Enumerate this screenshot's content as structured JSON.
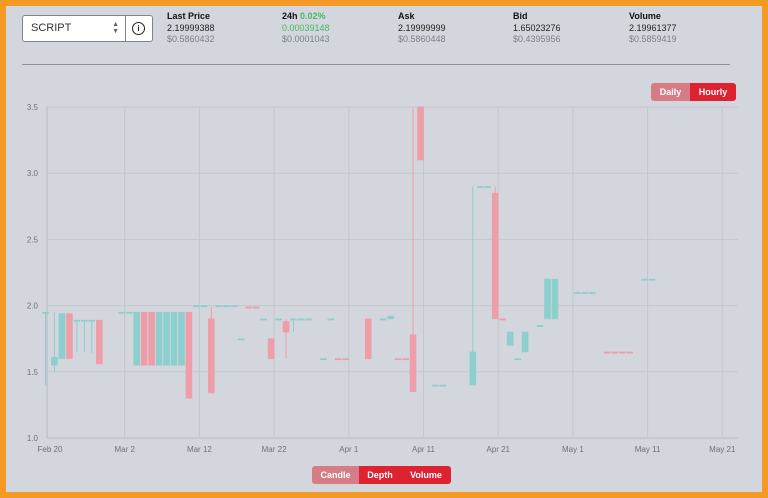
{
  "market_select": {
    "value": "SCRIPT"
  },
  "stats": [
    {
      "label": "Last Price",
      "value": "2.19999388",
      "sub": "$0.5860432"
    },
    {
      "label": "24h",
      "change": "0.02%",
      "value": "0.00039148",
      "sub": "$0.0001043"
    },
    {
      "label": "Ask",
      "value": "2.19999999",
      "sub": "$0.5860448"
    },
    {
      "label": "Bid",
      "value": "1.65023276",
      "sub": "$0.4395956"
    },
    {
      "label": "Volume",
      "value": "2.19961377",
      "sub": "$0.5859419"
    }
  ],
  "interval_toggle": {
    "options": [
      "Daily",
      "Hourly"
    ],
    "active": "Hourly"
  },
  "view_toggle": {
    "options": [
      "Candle",
      "Depth",
      "Volume"
    ],
    "active": "Depth"
  },
  "colors": {
    "up": "#8dcfce",
    "down": "#ed9ea9",
    "background": "#d3d6dc",
    "accent": "#dd2231"
  },
  "chart_data": {
    "type": "candlestick",
    "x_ticks": [
      "Feb 20",
      "Mar 2",
      "Mar 12",
      "Mar 22",
      "Apr 1",
      "Apr 11",
      "Apr 21",
      "May 1",
      "May 11",
      "May 21"
    ],
    "y_ticks": [
      "1.0",
      "1.5",
      "2.0",
      "2.5",
      "3.0",
      "3.5"
    ],
    "ylim": [
      1.0,
      3.5
    ],
    "x_start": "2020-02-20",
    "x_step_days": 10,
    "candles": [
      {
        "x": -0.6,
        "o": 1.95,
        "c": 1.95,
        "h": 1.95,
        "l": 1.4,
        "dir": "up"
      },
      {
        "x": 0.6,
        "o": 1.55,
        "c": 1.61,
        "h": 1.95,
        "l": 1.5,
        "dir": "up"
      },
      {
        "x": 1.6,
        "o": 1.6,
        "c": 1.94,
        "h": 1.94,
        "l": 1.6,
        "dir": "up"
      },
      {
        "x": 2.6,
        "o": 1.94,
        "c": 1.6,
        "h": 1.94,
        "l": 1.6,
        "dir": "down"
      },
      {
        "x": 3.6,
        "o": 1.89,
        "c": 1.89,
        "h": 1.89,
        "l": 1.65,
        "dir": "up"
      },
      {
        "x": 4.6,
        "o": 1.89,
        "c": 1.89,
        "h": 1.89,
        "l": 1.65,
        "dir": "up"
      },
      {
        "x": 5.6,
        "o": 1.89,
        "c": 1.89,
        "h": 1.89,
        "l": 1.64,
        "dir": "up"
      },
      {
        "x": 6.6,
        "o": 1.89,
        "c": 1.56,
        "h": 1.89,
        "l": 1.56,
        "dir": "down"
      },
      {
        "x": 9.6,
        "o": 1.95,
        "c": 1.95,
        "h": 1.95,
        "l": 1.95,
        "dir": "up"
      },
      {
        "x": 10.6,
        "o": 1.95,
        "c": 1.95,
        "h": 1.95,
        "l": 1.95,
        "dir": "up"
      },
      {
        "x": 11.6,
        "o": 1.55,
        "c": 1.95,
        "h": 1.95,
        "l": 1.55,
        "dir": "up"
      },
      {
        "x": 12.6,
        "o": 1.95,
        "c": 1.55,
        "h": 1.95,
        "l": 1.55,
        "dir": "down"
      },
      {
        "x": 13.6,
        "o": 1.95,
        "c": 1.55,
        "h": 1.95,
        "l": 1.55,
        "dir": "down"
      },
      {
        "x": 14.6,
        "o": 1.55,
        "c": 1.95,
        "h": 1.95,
        "l": 1.55,
        "dir": "up"
      },
      {
        "x": 15.6,
        "o": 1.55,
        "c": 1.95,
        "h": 1.95,
        "l": 1.55,
        "dir": "up"
      },
      {
        "x": 16.6,
        "o": 1.55,
        "c": 1.95,
        "h": 1.95,
        "l": 1.55,
        "dir": "up"
      },
      {
        "x": 17.6,
        "o": 1.55,
        "c": 1.95,
        "h": 1.95,
        "l": 1.55,
        "dir": "up"
      },
      {
        "x": 18.6,
        "o": 1.95,
        "c": 1.3,
        "h": 1.95,
        "l": 1.3,
        "dir": "down"
      },
      {
        "x": 19.6,
        "o": 2.0,
        "c": 2.0,
        "h": 2.0,
        "l": 2.0,
        "dir": "up"
      },
      {
        "x": 20.6,
        "o": 2.0,
        "c": 2.0,
        "h": 2.0,
        "l": 2.0,
        "dir": "up"
      },
      {
        "x": 21.6,
        "o": 1.9,
        "c": 1.34,
        "h": 1.99,
        "l": 1.34,
        "dir": "down"
      },
      {
        "x": 22.6,
        "o": 2.0,
        "c": 2.0,
        "h": 2.0,
        "l": 2.0,
        "dir": "up"
      },
      {
        "x": 23.6,
        "o": 2.0,
        "c": 2.0,
        "h": 2.0,
        "l": 2.0,
        "dir": "up"
      },
      {
        "x": 24.6,
        "o": 2.0,
        "c": 2.0,
        "h": 2.0,
        "l": 2.0,
        "dir": "up"
      },
      {
        "x": 25.6,
        "o": 1.75,
        "c": 1.75,
        "h": 1.75,
        "l": 1.75,
        "dir": "up"
      },
      {
        "x": 26.6,
        "o": 1.99,
        "c": 1.99,
        "h": 1.99,
        "l": 1.99,
        "dir": "down"
      },
      {
        "x": 27.6,
        "o": 1.99,
        "c": 1.99,
        "h": 1.99,
        "l": 1.99,
        "dir": "down"
      },
      {
        "x": 28.6,
        "o": 1.9,
        "c": 1.9,
        "h": 1.9,
        "l": 1.9,
        "dir": "up"
      },
      {
        "x": 29.6,
        "o": 1.75,
        "c": 1.6,
        "h": 1.75,
        "l": 1.6,
        "dir": "down"
      },
      {
        "x": 30.6,
        "o": 1.9,
        "c": 1.9,
        "h": 1.9,
        "l": 1.9,
        "dir": "up"
      },
      {
        "x": 31.6,
        "o": 1.88,
        "c": 1.8,
        "h": 1.9,
        "l": 1.6,
        "dir": "down"
      },
      {
        "x": 32.6,
        "o": 1.9,
        "c": 1.9,
        "h": 1.9,
        "l": 1.8,
        "dir": "up"
      },
      {
        "x": 33.6,
        "o": 1.9,
        "c": 1.9,
        "h": 1.9,
        "l": 1.9,
        "dir": "up"
      },
      {
        "x": 34.6,
        "o": 1.9,
        "c": 1.9,
        "h": 1.9,
        "l": 1.9,
        "dir": "up"
      },
      {
        "x": 36.6,
        "o": 1.6,
        "c": 1.6,
        "h": 1.6,
        "l": 1.6,
        "dir": "up"
      },
      {
        "x": 37.6,
        "o": 1.9,
        "c": 1.9,
        "h": 1.9,
        "l": 1.9,
        "dir": "up"
      },
      {
        "x": 38.6,
        "o": 1.6,
        "c": 1.6,
        "h": 1.6,
        "l": 1.6,
        "dir": "down"
      },
      {
        "x": 39.6,
        "o": 1.6,
        "c": 1.6,
        "h": 1.6,
        "l": 1.6,
        "dir": "down"
      },
      {
        "x": 42.6,
        "o": 1.9,
        "c": 1.6,
        "h": 1.9,
        "l": 1.6,
        "dir": "down"
      },
      {
        "x": 44.6,
        "o": 1.9,
        "c": 1.9,
        "h": 1.9,
        "l": 1.9,
        "dir": "up"
      },
      {
        "x": 45.6,
        "o": 1.9,
        "c": 1.92,
        "h": 1.92,
        "l": 1.9,
        "dir": "up"
      },
      {
        "x": 46.6,
        "o": 1.6,
        "c": 1.6,
        "h": 1.6,
        "l": 1.6,
        "dir": "down"
      },
      {
        "x": 47.6,
        "o": 1.6,
        "c": 1.6,
        "h": 1.6,
        "l": 1.6,
        "dir": "down"
      },
      {
        "x": 48.6,
        "o": 1.78,
        "c": 1.35,
        "h": 3.5,
        "l": 1.35,
        "dir": "down"
      },
      {
        "x": 49.6,
        "o": 3.5,
        "c": 3.1,
        "h": 3.5,
        "l": 3.1,
        "dir": "down"
      },
      {
        "x": 51.6,
        "o": 1.4,
        "c": 1.4,
        "h": 1.4,
        "l": 1.4,
        "dir": "up"
      },
      {
        "x": 52.6,
        "o": 1.4,
        "c": 1.4,
        "h": 1.4,
        "l": 1.4,
        "dir": "up"
      },
      {
        "x": 56.6,
        "o": 1.4,
        "c": 1.65,
        "h": 2.9,
        "l": 1.4,
        "dir": "up"
      },
      {
        "x": 57.6,
        "o": 2.9,
        "c": 2.9,
        "h": 2.9,
        "l": 2.9,
        "dir": "up"
      },
      {
        "x": 58.6,
        "o": 2.9,
        "c": 2.9,
        "h": 2.9,
        "l": 2.9,
        "dir": "up"
      },
      {
        "x": 59.6,
        "o": 2.85,
        "c": 1.9,
        "h": 2.9,
        "l": 1.9,
        "dir": "down"
      },
      {
        "x": 60.6,
        "o": 1.9,
        "c": 1.9,
        "h": 1.9,
        "l": 1.9,
        "dir": "down"
      },
      {
        "x": 61.6,
        "o": 1.7,
        "c": 1.8,
        "h": 1.8,
        "l": 1.7,
        "dir": "up"
      },
      {
        "x": 62.6,
        "o": 1.6,
        "c": 1.6,
        "h": 1.6,
        "l": 1.6,
        "dir": "up"
      },
      {
        "x": 63.6,
        "o": 1.65,
        "c": 1.8,
        "h": 1.8,
        "l": 1.65,
        "dir": "up"
      },
      {
        "x": 65.6,
        "o": 1.85,
        "c": 1.85,
        "h": 1.85,
        "l": 1.85,
        "dir": "up"
      },
      {
        "x": 66.6,
        "o": 1.9,
        "c": 2.2,
        "h": 2.2,
        "l": 1.9,
        "dir": "up"
      },
      {
        "x": 67.6,
        "o": 1.9,
        "c": 2.2,
        "h": 2.2,
        "l": 1.9,
        "dir": "up"
      },
      {
        "x": 70.6,
        "o": 2.1,
        "c": 2.1,
        "h": 2.1,
        "l": 2.1,
        "dir": "up"
      },
      {
        "x": 71.6,
        "o": 2.1,
        "c": 2.1,
        "h": 2.1,
        "l": 2.1,
        "dir": "up"
      },
      {
        "x": 72.6,
        "o": 2.1,
        "c": 2.1,
        "h": 2.1,
        "l": 2.1,
        "dir": "up"
      },
      {
        "x": 74.6,
        "o": 1.65,
        "c": 1.65,
        "h": 1.65,
        "l": 1.65,
        "dir": "down"
      },
      {
        "x": 75.6,
        "o": 1.65,
        "c": 1.65,
        "h": 1.65,
        "l": 1.65,
        "dir": "down"
      },
      {
        "x": 76.6,
        "o": 1.65,
        "c": 1.65,
        "h": 1.65,
        "l": 1.65,
        "dir": "down"
      },
      {
        "x": 77.6,
        "o": 1.65,
        "c": 1.65,
        "h": 1.65,
        "l": 1.65,
        "dir": "down"
      },
      {
        "x": 79.6,
        "o": 2.2,
        "c": 2.2,
        "h": 2.2,
        "l": 2.2,
        "dir": "up"
      },
      {
        "x": 80.6,
        "o": 2.2,
        "c": 2.2,
        "h": 2.2,
        "l": 2.2,
        "dir": "up"
      }
    ]
  }
}
